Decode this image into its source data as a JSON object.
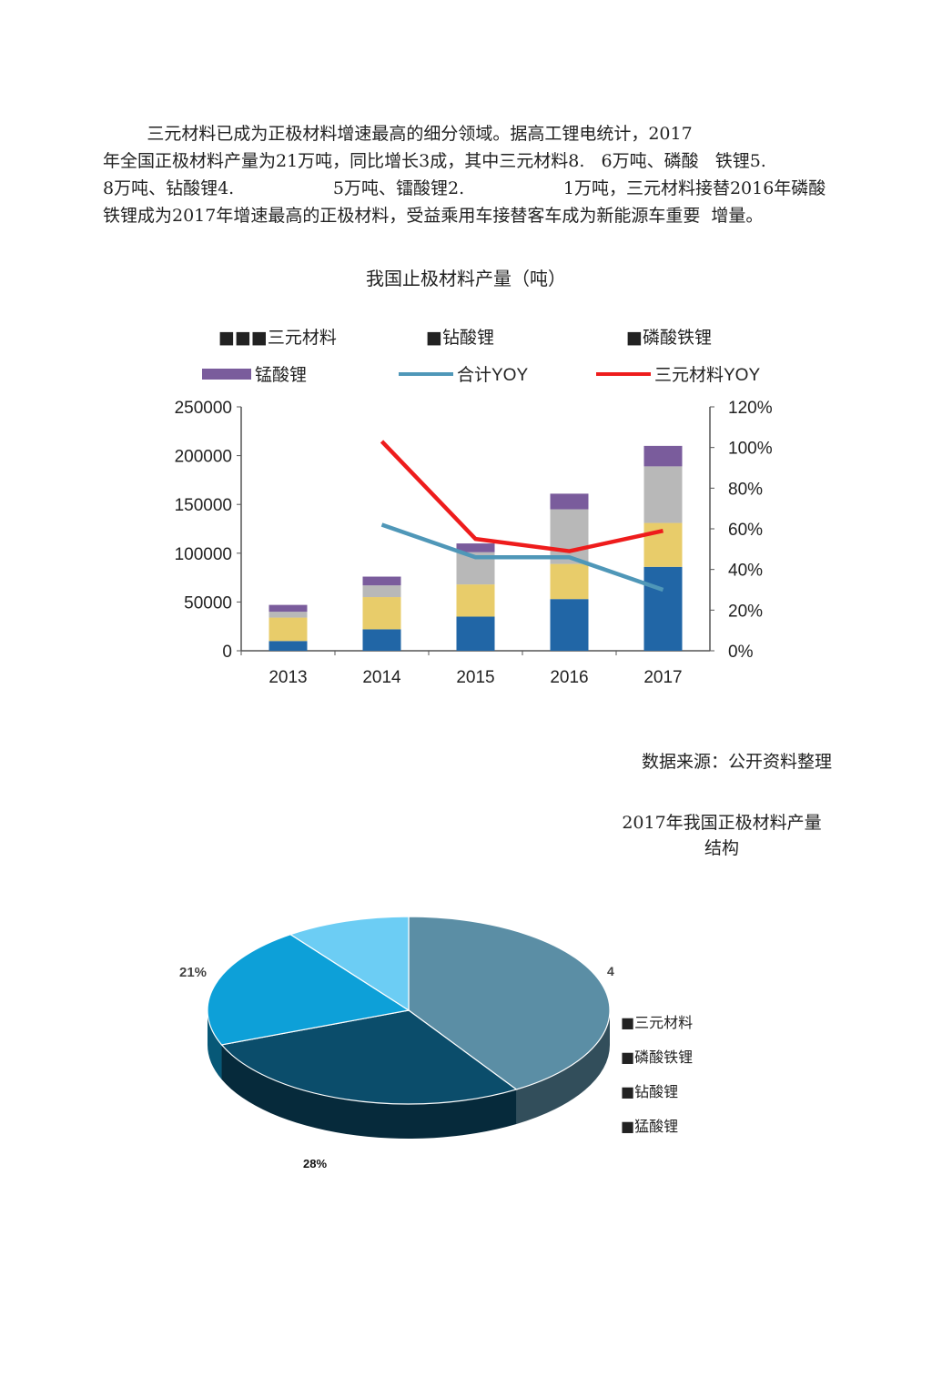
{
  "intro": {
    "lines": [
      "        三元材料已成为正极材料增速最高的细分领域。据高工锂电统计，2017",
      "年全国正极材料产量为21万吨，同比增长3成，其中三元材料8.   6万吨、磷酸   铁锂5.",
      "8万吨、钻酸锂4.                  5万吨、镭酸锂2.                  1万吨，三元材料接替2016年磷酸",
      "铁锂成为2017年增速最高的正极材料，受益乘用车接替客车成为新能源车重要  增量。"
    ]
  },
  "chart_data": [
    {
      "type": "bar",
      "title": "我国止极材料产量（吨）",
      "categories": [
        "2013",
        "2014",
        "2015",
        "2016",
        "2017"
      ],
      "series": [
        {
          "name": "三元材料",
          "values": [
            10000,
            22000,
            35000,
            53000,
            86000
          ],
          "color": "#2166a6"
        },
        {
          "name": "钻酸锂",
          "values": [
            24000,
            33000,
            33000,
            36000,
            45000
          ],
          "color": "#e8cc6a"
        },
        {
          "name": "磷酸铁锂",
          "values": [
            6000,
            12000,
            33000,
            56000,
            58000
          ],
          "color": "#b8b8b8"
        },
        {
          "name": "锰酸锂",
          "values": [
            7000,
            9000,
            9000,
            16000,
            21000
          ],
          "color": "#7a5c9c"
        }
      ],
      "lines": [
        {
          "name": "合计YOY",
          "values": [
            null,
            0.62,
            0.46,
            0.46,
            0.3
          ],
          "color": "#4f97b8"
        },
        {
          "name": "三元材料YOY",
          "values": [
            null,
            1.03,
            0.55,
            0.49,
            0.59
          ],
          "color": "#ee1c1c"
        }
      ],
      "legend": {
        "row1": [
          "■■■三元材料",
          "■钻酸锂",
          "■磷酸铁锂"
        ],
        "row2": [
          "锰酸锂",
          "合计YOY",
          "三元材料YOY"
        ]
      },
      "ylim": [
        0,
        250000
      ],
      "y_ticks": [
        "250000",
        "200000",
        "150000",
        "100000",
        "50000",
        "0"
      ],
      "y2lim": [
        0,
        1.2
      ],
      "y2_ticks": [
        "120%",
        "100%",
        "80%",
        "60%",
        "40%",
        "20%",
        "0%"
      ]
    },
    {
      "type": "pie",
      "title_lines": [
        "2017年我国正极材料产量",
        "结构"
      ],
      "slices": [
        {
          "name": "三元材料",
          "value": 41,
          "color": "#5b8ea5"
        },
        {
          "name": "磷酸铁锂",
          "value": 28,
          "color": "#0b4d6b",
          "label": "28%"
        },
        {
          "name": "钻酸锂",
          "value": 21,
          "color": "#0da0d8",
          "label": "21%"
        },
        {
          "name": "猛酸锂",
          "value": 10,
          "color": "#6ccdf4"
        }
      ],
      "legend": [
        "■三元材料",
        "■磷酸铁锂",
        "■钻酸锂",
        "■猛酸锂"
      ],
      "partial_label": "4"
    }
  ],
  "source": "数据来源：公开资料整理"
}
